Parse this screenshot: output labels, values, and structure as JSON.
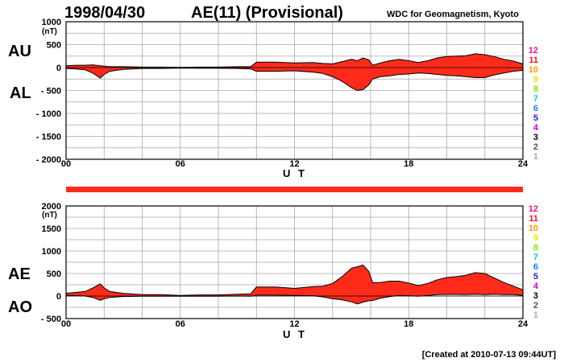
{
  "header": {
    "date": "1998/04/30",
    "title": "AE(11) (Provisional)",
    "source": "WDC for Geomagnetism, Kyoto"
  },
  "footer": {
    "created": "[Created at 2010-07-13 09:44UT]"
  },
  "unit_label": "(nT)",
  "x_axis_label": "U T",
  "fill_color": "#ff2b1a",
  "station_counts": [
    "12",
    "11",
    "10",
    "9",
    "8",
    "7",
    "6",
    "5",
    "4",
    "3",
    "2",
    "1"
  ],
  "station_colors": [
    "#e8197d",
    "#e8191e",
    "#ff9f00",
    "#e6e600",
    "#80e600",
    "#00d0d0",
    "#1e7aff",
    "#1e1ee6",
    "#c800c8",
    "#000000",
    "#555555",
    "#aaaaaa"
  ],
  "chart_data": [
    {
      "type": "area",
      "upper_label": "AU",
      "lower_label": "AL",
      "xlim": [
        0,
        24
      ],
      "ylim": [
        -2000,
        1000
      ],
      "xticks": [
        "00",
        "06",
        "12",
        "18",
        "24"
      ],
      "yticks": [
        "1000",
        "500",
        "0",
        "- 500",
        "- 1000",
        "- 1500",
        "- 2000"
      ],
      "x": [
        0,
        0.5,
        1,
        1.4,
        1.8,
        2,
        2.3,
        3,
        4,
        5,
        6,
        7,
        8,
        9,
        9.7,
        10,
        11,
        12,
        13,
        13.5,
        14,
        14.5,
        15,
        15.3,
        15.6,
        15.9,
        16.1,
        16.5,
        17,
        17.5,
        18,
        18.5,
        19,
        19.5,
        20,
        20.5,
        21,
        21.5,
        22,
        22.5,
        23,
        23.5,
        24
      ],
      "series": [
        {
          "name": "AU",
          "values": [
            40,
            50,
            50,
            60,
            40,
            30,
            20,
            20,
            10,
            10,
            5,
            10,
            10,
            20,
            20,
            120,
            120,
            100,
            110,
            90,
            80,
            130,
            180,
            150,
            210,
            170,
            50,
            100,
            150,
            180,
            150,
            110,
            150,
            210,
            240,
            250,
            260,
            300,
            280,
            240,
            180,
            140,
            80
          ]
        },
        {
          "name": "AL",
          "values": [
            -20,
            -30,
            -50,
            -120,
            -230,
            -150,
            -80,
            -40,
            -20,
            -20,
            -10,
            -15,
            -15,
            -20,
            -30,
            -80,
            -80,
            -70,
            -100,
            -130,
            -200,
            -300,
            -440,
            -500,
            -480,
            -380,
            -250,
            -200,
            -180,
            -150,
            -140,
            -120,
            -130,
            -150,
            -170,
            -180,
            -200,
            -220,
            -220,
            -160,
            -120,
            -80,
            -60
          ]
        }
      ]
    },
    {
      "type": "area",
      "upper_label": "AE",
      "lower_label": "AO",
      "xlim": [
        0,
        24
      ],
      "ylim": [
        -500,
        2000
      ],
      "xticks": [
        "00",
        "06",
        "12",
        "18",
        "24"
      ],
      "yticks": [
        "2000",
        "1500",
        "1000",
        "500",
        "0",
        "- 500"
      ],
      "x": [
        0,
        0.5,
        1,
        1.4,
        1.8,
        2,
        2.3,
        3,
        4,
        5,
        6,
        7,
        8,
        9,
        9.7,
        10,
        11,
        12,
        13,
        13.5,
        14,
        14.5,
        15,
        15.3,
        15.6,
        15.9,
        16.1,
        16.5,
        17,
        17.5,
        18,
        18.5,
        19,
        19.5,
        20,
        20.5,
        21,
        21.5,
        22,
        22.5,
        23,
        23.5,
        24
      ],
      "series": [
        {
          "name": "AE",
          "values": [
            60,
            80,
            100,
            180,
            270,
            180,
            100,
            60,
            30,
            30,
            15,
            25,
            25,
            40,
            50,
            200,
            200,
            170,
            210,
            220,
            280,
            430,
            620,
            650,
            690,
            550,
            300,
            300,
            330,
            330,
            290,
            230,
            280,
            360,
            410,
            430,
            460,
            520,
            500,
            400,
            300,
            220,
            140
          ]
        },
        {
          "name": "AO",
          "values": [
            10,
            10,
            0,
            -30,
            -95,
            -60,
            -30,
            -10,
            -5,
            -5,
            -3,
            -3,
            -3,
            0,
            -5,
            20,
            20,
            15,
            5,
            -20,
            -60,
            -85,
            -130,
            -175,
            -135,
            -105,
            -100,
            -50,
            -15,
            15,
            5,
            -5,
            10,
            30,
            35,
            35,
            30,
            40,
            30,
            40,
            30,
            30,
            10
          ]
        }
      ]
    }
  ]
}
